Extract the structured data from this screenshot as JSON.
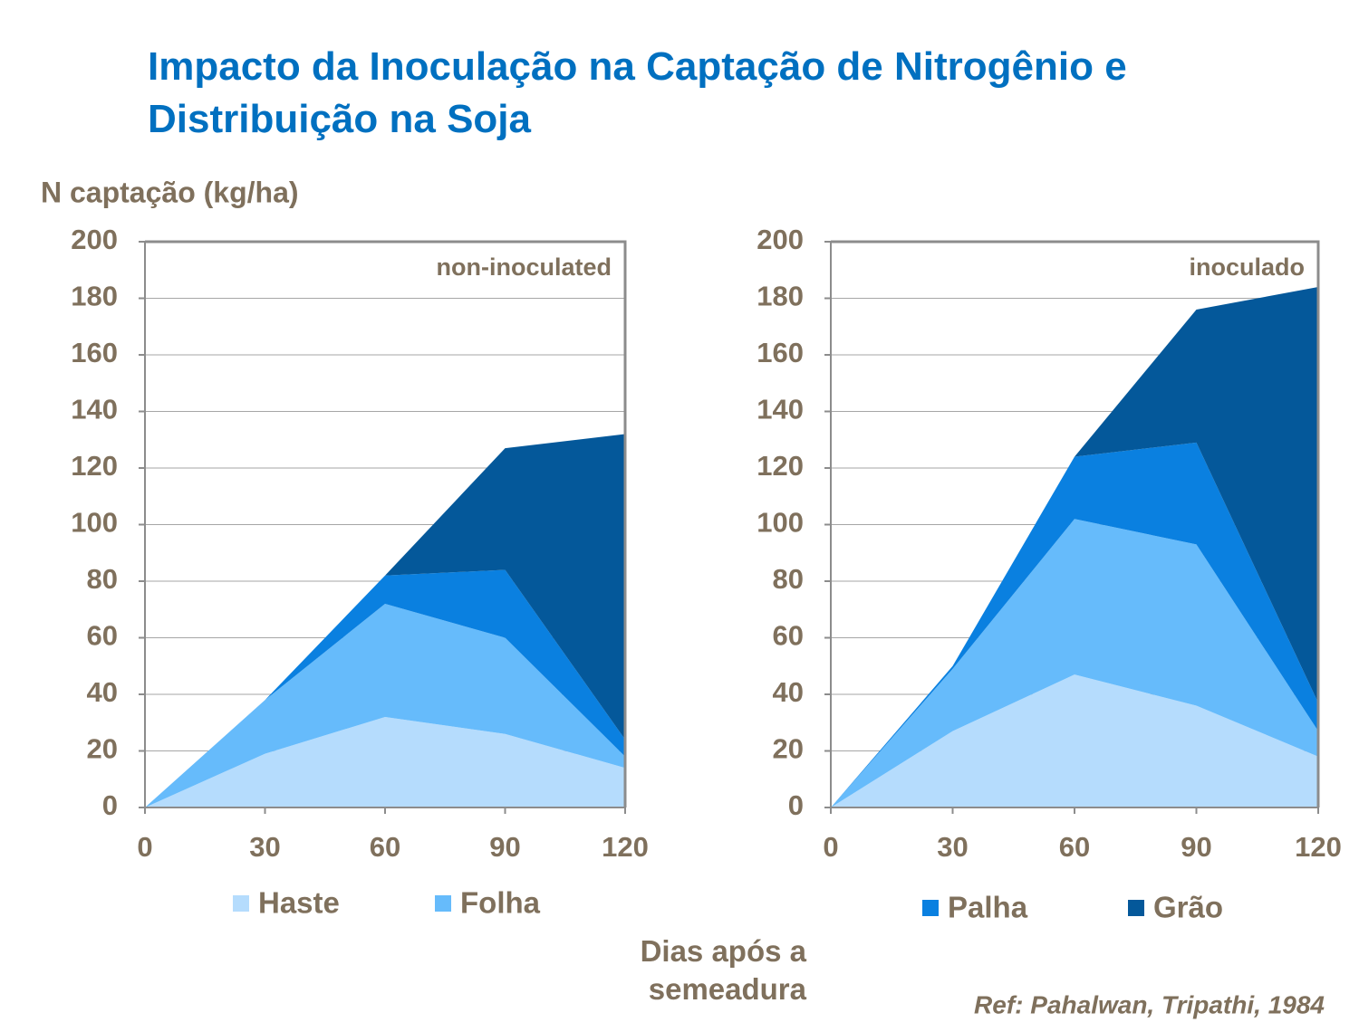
{
  "title": "Impacto da Inoculação na Captação de Nitrogênio e Distribuição na Soja",
  "y_axis_label": "N captação (kg/ha)",
  "x_axis_label": "Dias após a semeadura",
  "reference": "Ref: Pahalwan, Tripathi, 1984",
  "chart_data": [
    {
      "type": "stacked-area",
      "annotation": "non-inoculated",
      "x": [
        0,
        30,
        60,
        90,
        120
      ],
      "xlim": [
        0,
        120
      ],
      "xticks": [
        0,
        30,
        60,
        90,
        120
      ],
      "ylim": [
        0,
        200
      ],
      "yticks": [
        0,
        20,
        40,
        60,
        80,
        100,
        120,
        140,
        160,
        180,
        200
      ],
      "grid": true,
      "series": [
        {
          "name": "Haste",
          "color": "#b5dcfd",
          "values": [
            0,
            19,
            32,
            26,
            14
          ]
        },
        {
          "name": "Folha",
          "color": "#66bbfb",
          "values": [
            0,
            19,
            40,
            34,
            4
          ]
        },
        {
          "name": "Palha",
          "color": "#0a80e0",
          "values": [
            0,
            0,
            10,
            24,
            6
          ]
        },
        {
          "name": "Grão",
          "color": "#04589a",
          "values": [
            0,
            0,
            0,
            43,
            108
          ]
        }
      ]
    },
    {
      "type": "stacked-area",
      "annotation": "inoculado",
      "x": [
        0,
        30,
        60,
        90,
        120
      ],
      "xlim": [
        0,
        120
      ],
      "xticks": [
        0,
        30,
        60,
        90,
        120
      ],
      "ylim": [
        0,
        200
      ],
      "yticks": [
        0,
        20,
        40,
        60,
        80,
        100,
        120,
        140,
        160,
        180,
        200
      ],
      "grid": true,
      "series": [
        {
          "name": "Haste",
          "color": "#b5dcfd",
          "values": [
            0,
            27,
            47,
            36,
            18
          ]
        },
        {
          "name": "Folha",
          "color": "#66bbfb",
          "values": [
            0,
            22,
            55,
            57,
            9
          ]
        },
        {
          "name": "Palha",
          "color": "#0a80e0",
          "values": [
            0,
            1,
            22,
            36,
            10
          ]
        },
        {
          "name": "Grão",
          "color": "#04589a",
          "values": [
            0,
            0,
            0,
            47,
            147
          ]
        }
      ]
    }
  ]
}
